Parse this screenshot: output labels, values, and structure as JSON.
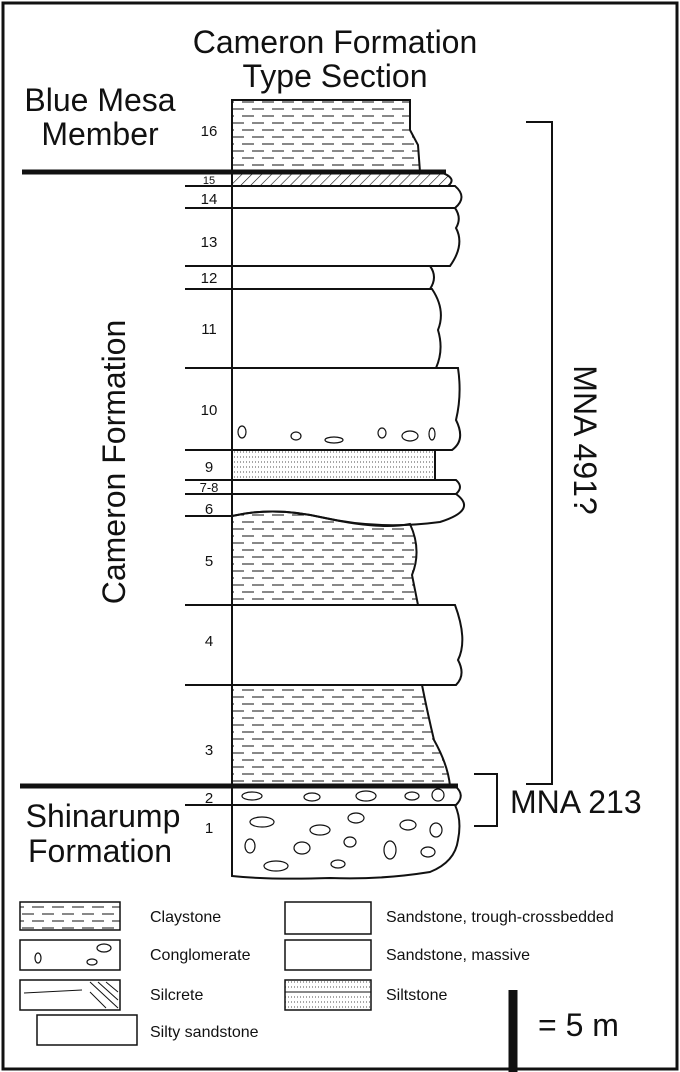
{
  "title": {
    "line1": "Cameron Formation",
    "line2": "Type Section"
  },
  "formations": {
    "upper": {
      "line1": "Blue Mesa",
      "line2": "Member"
    },
    "middle": "Cameron Formation",
    "lower": {
      "line1": "Shinarump",
      "line2": "Formation"
    }
  },
  "units": [
    "16",
    "15",
    "14",
    "13",
    "12",
    "11",
    "10",
    "9",
    "7-8",
    "6",
    "5",
    "4",
    "3",
    "2",
    "1"
  ],
  "brackets": {
    "upper": "MNA 491?",
    "lower": "MNA 213"
  },
  "legend": {
    "claystone": "Claystone",
    "conglomerate": "Conglomerate",
    "silcrete": "Silcrete",
    "silty_sandstone": "Silty sandstone",
    "sandstone_trough": "Sandstone, trough-crossbedded",
    "sandstone_massive": "Sandstone, massive",
    "siltstone": "Siltstone"
  },
  "scale_bar": {
    "label": "= 5 m",
    "value_m": 5
  },
  "colors": {
    "line": "#111111",
    "background": "#ffffff"
  }
}
